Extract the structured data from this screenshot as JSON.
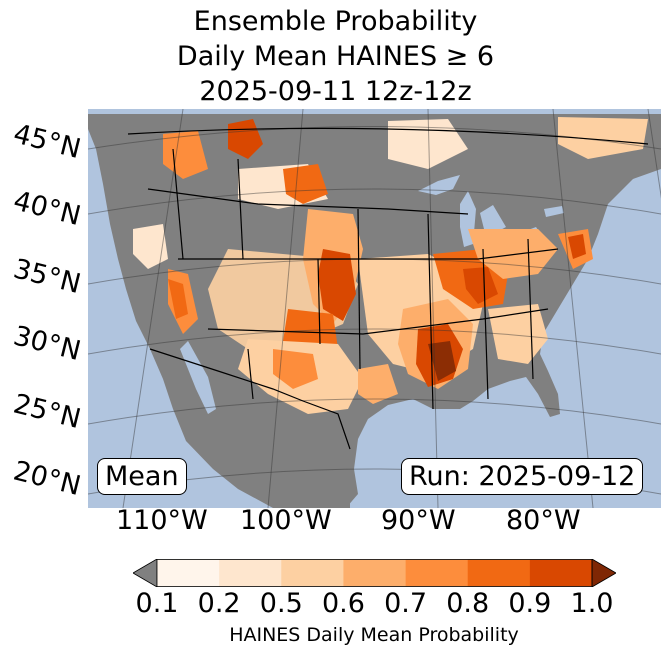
{
  "title": {
    "line1": "Ensemble Probability",
    "line2": "Daily Mean HAINES ≥ 6",
    "line3": "2025-09-11 12z-12z"
  },
  "map": {
    "ocean_color": "#b0c4de",
    "land_nodata_color": "#808080",
    "lat_labels": [
      "45°N",
      "40°N",
      "35°N",
      "30°N",
      "25°N",
      "20°N"
    ],
    "lon_labels": [
      "110°W",
      "100°W",
      "90°W",
      "80°W"
    ]
  },
  "annotations": {
    "mean_label": "Mean",
    "run_label": "Run: 2025-09-12"
  },
  "colorbar": {
    "label": "HAINES Daily Mean Probability",
    "ticks": [
      "0.1",
      "0.2",
      "0.5",
      "0.6",
      "0.7",
      "0.8",
      "0.9",
      "1.0"
    ],
    "under_color": "#808080",
    "over_color": "#7f2704",
    "colors": [
      "#fff5eb",
      "#fee6ce",
      "#fdd0a2",
      "#fdae6b",
      "#fd8d3c",
      "#f16913",
      "#d94801"
    ]
  }
}
